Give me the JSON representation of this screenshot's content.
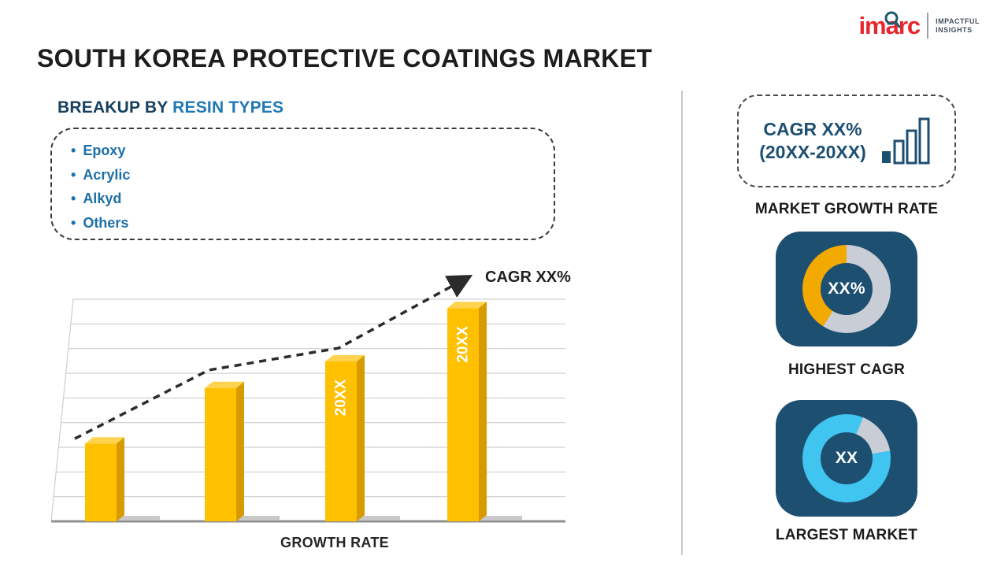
{
  "header": {
    "title": "SOUTH KOREA PROTECTIVE COATINGS MARKET",
    "logo": {
      "brand": "imarc",
      "tagline_line1": "IMPACTFUL",
      "tagline_line2": "INSIGHTS"
    }
  },
  "breakup": {
    "heading_prefix": "BREAKUP BY ",
    "heading_highlight": "RESIN TYPES",
    "items": [
      "Epoxy",
      "Acrylic",
      "Alkyd",
      "Others"
    ]
  },
  "sidebar": {
    "cagr_card": {
      "line1": "CAGR XX%",
      "line2": "(20XX-20XX)",
      "icon": "bar-chart-icon"
    },
    "market_growth_caption": "MARKET GROWTH RATE"
  },
  "chart_data": [
    {
      "type": "bar",
      "categories": [
        "",
        "",
        "20XX",
        "20XX"
      ],
      "values": [
        35,
        60,
        72,
        96
      ],
      "xlabel": "GROWTH RATE",
      "annotation": "CAGR XX%",
      "ylim": [
        0,
        100
      ],
      "grid": true,
      "colors": {
        "face": "#ffc000",
        "top": "#ffd34d",
        "side": "#d79b00"
      }
    },
    {
      "type": "pie",
      "label": "HIGHEST CAGR",
      "center_text": "XX%",
      "slices": [
        {
          "name": "highlight",
          "value": 41,
          "color": "#f2a900"
        },
        {
          "name": "remainder",
          "value": 59,
          "color": "#c9ced6"
        }
      ]
    },
    {
      "type": "pie",
      "label": "LARGEST MARKET",
      "center_text": "XX",
      "slices": [
        {
          "name": "highlight",
          "value": 84,
          "color": "#3fc5f0"
        },
        {
          "name": "remainder",
          "value": 16,
          "color": "#c9ced6"
        }
      ]
    }
  ],
  "colors": {
    "navy": "#1d4f71",
    "heading_dark_blue": "#16405f",
    "heading_blue": "#1e78b5",
    "bullet_blue": "#1d6fa8",
    "bar_gold": "#ffc000",
    "donut_orange": "#f2a900",
    "donut_cyan": "#3fc5f0",
    "ring_gray": "#c9ced6",
    "brand_red": "#e8262d"
  }
}
